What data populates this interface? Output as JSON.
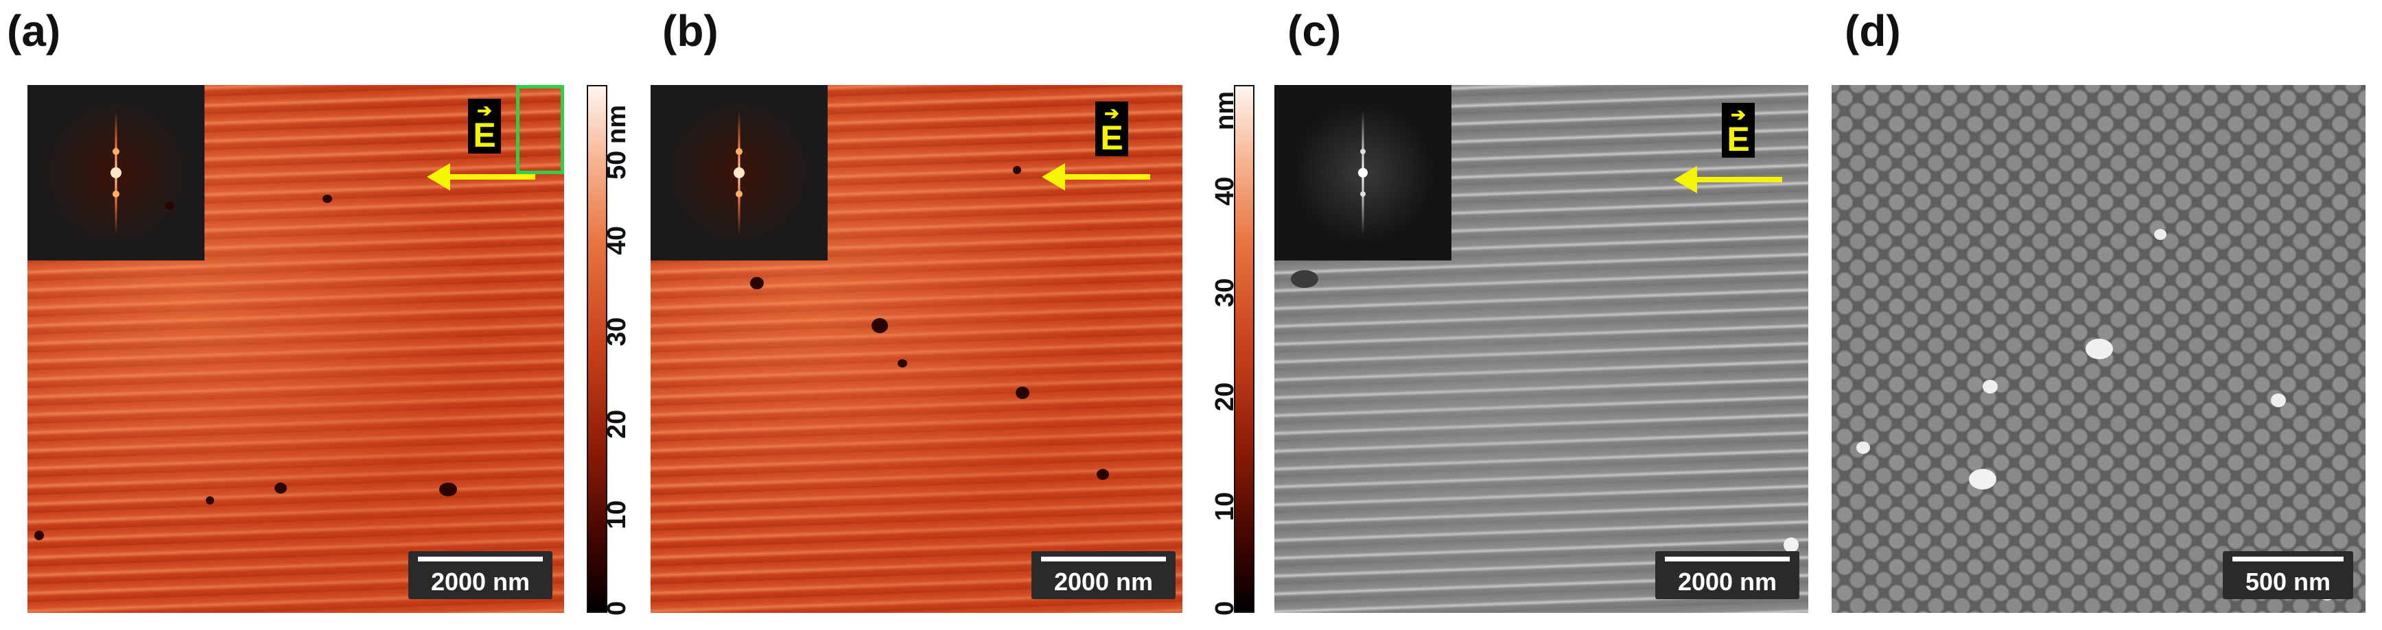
{
  "panels": {
    "a": {
      "label": "(a)",
      "scale": "2000 nm",
      "badge_arrow": "➔",
      "badge_letter": "E"
    },
    "b": {
      "label": "(b)",
      "scale": "2000 nm",
      "badge_arrow": "➔",
      "badge_letter": "E"
    },
    "c": {
      "label": "(c)",
      "scale": "2000 nm",
      "badge_arrow": "➔",
      "badge_letter": "E"
    },
    "d": {
      "label": "(d)",
      "scale": "500 nm"
    }
  },
  "colorbars": {
    "a": {
      "unit": "nm",
      "ticks": [
        "0",
        "10",
        "20",
        "30",
        "40",
        "50"
      ]
    },
    "b": {
      "unit": "nm",
      "ticks": [
        "0",
        "10",
        "20",
        "30",
        "40"
      ]
    }
  },
  "colors": {
    "arrow": "#f5f500",
    "highlight_box": "#2fcf4a"
  }
}
